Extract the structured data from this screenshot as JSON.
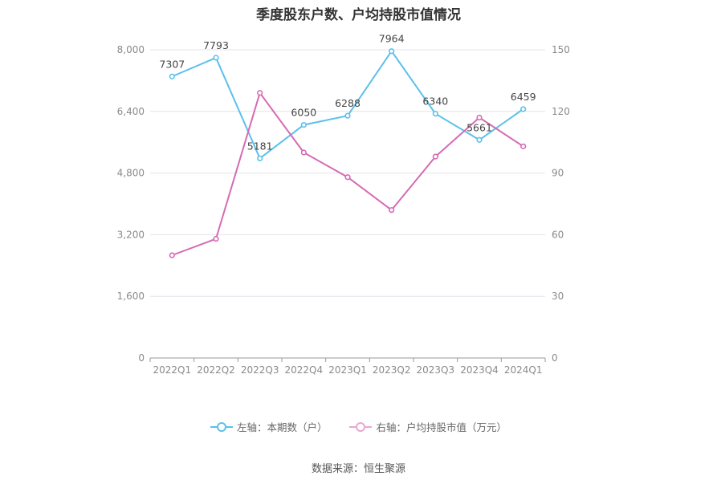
{
  "chart_data": {
    "type": "line",
    "title": "季度股东户数、户均持股市值情况",
    "categories": [
      "2022Q1",
      "2022Q2",
      "2022Q3",
      "2022Q4",
      "2023Q1",
      "2023Q2",
      "2023Q3",
      "2023Q4",
      "2024Q1"
    ],
    "left_axis": {
      "ylim": [
        0,
        8000
      ],
      "ticks": [
        "0",
        "1,600",
        "3,200",
        "4,800",
        "6,400",
        "8,000"
      ]
    },
    "right_axis": {
      "ylim": [
        0,
        150
      ],
      "ticks": [
        "0",
        "30",
        "60",
        "90",
        "120",
        "150"
      ]
    },
    "series": [
      {
        "name": "左轴：本期数（户）",
        "axis": "left",
        "color": "#5bc0eb",
        "values": [
          7307,
          7793,
          5181,
          6050,
          6288,
          7964,
          6340,
          5661,
          6459
        ],
        "labels": [
          "7307",
          "7793",
          "5181",
          "6050",
          "6288",
          "7964",
          "6340",
          "5661",
          "6459"
        ]
      },
      {
        "name": "右轴：户均持股市值（万元）",
        "axis": "right",
        "color": "#d56bb3",
        "values": [
          50,
          58,
          129,
          100,
          88,
          72,
          98,
          117,
          103
        ]
      }
    ],
    "grid": true,
    "legend": "bottom"
  },
  "source": "数据来源：恒生聚源"
}
